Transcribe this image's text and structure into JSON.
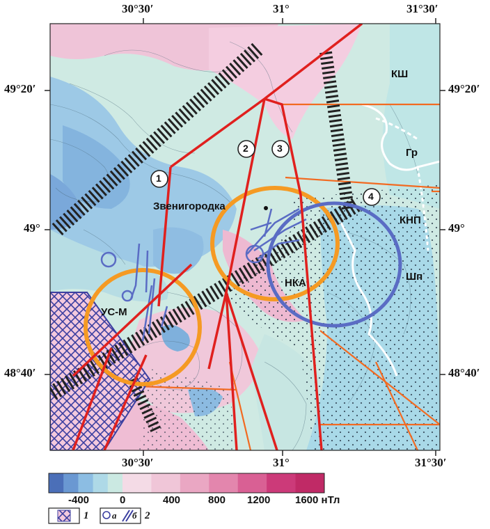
{
  "coords": {
    "top": [
      "30°30′",
      "31°",
      "31°30′"
    ],
    "bottom": [
      "30°30′",
      "31°",
      "31°30′"
    ],
    "left": [
      "49°20′",
      "49°",
      "48°40′"
    ],
    "right": [
      "49°20′",
      "49°",
      "48°40′"
    ]
  },
  "places": {
    "ksh": "КШ",
    "gr": "Гр",
    "knp": "КНП",
    "shp": "Шп",
    "nka": "НКА",
    "usm": "УС-М",
    "town": "Звенигородка"
  },
  "faults": [
    "1",
    "2",
    "3",
    "4"
  ],
  "scale": {
    "labels": [
      "-400",
      "0",
      "400",
      "800",
      "1200",
      "1600 нТл"
    ],
    "negative_colors": [
      "#4b6fb8",
      "#6a98d2",
      "#8cbde3",
      "#aed9e7",
      "#cbe9e2"
    ],
    "positive_colors": [
      "#f4dbe6",
      "#f0c6d8",
      "#eaa7c3",
      "#e386ad",
      "#d96094",
      "#cc3a79",
      "#c02a66"
    ]
  },
  "legend": {
    "item1_num": "1",
    "item2_a": "а",
    "item2_b": "б",
    "item2_num": "2"
  },
  "colors": {
    "fault_red": "#e0201e",
    "boundary_orange": "#f26a21",
    "ring_orange": "#f59a23",
    "ring_blue": "#5a6cc4",
    "hatch": "#222222",
    "crosshatch": "#3b3fa0"
  }
}
